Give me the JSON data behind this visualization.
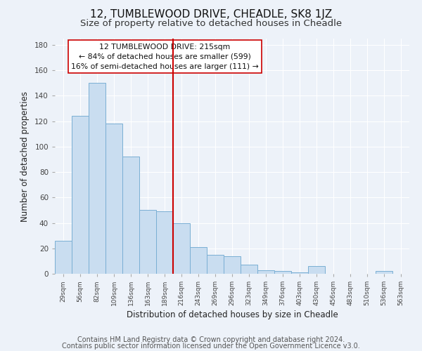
{
  "title": "12, TUMBLEWOOD DRIVE, CHEADLE, SK8 1JZ",
  "subtitle": "Size of property relative to detached houses in Cheadle",
  "xlabel": "Distribution of detached houses by size in Cheadle",
  "ylabel": "Number of detached properties",
  "bar_labels": [
    "29sqm",
    "56sqm",
    "82sqm",
    "109sqm",
    "136sqm",
    "163sqm",
    "189sqm",
    "216sqm",
    "243sqm",
    "269sqm",
    "296sqm",
    "323sqm",
    "349sqm",
    "376sqm",
    "403sqm",
    "430sqm",
    "456sqm",
    "483sqm",
    "510sqm",
    "536sqm",
    "563sqm"
  ],
  "bar_values": [
    26,
    124,
    150,
    118,
    92,
    50,
    49,
    40,
    21,
    15,
    14,
    7,
    3,
    2,
    1,
    6,
    0,
    0,
    0,
    2,
    0
  ],
  "bar_color": "#c9ddf0",
  "bar_edge_color": "#7aafd4",
  "vline_color": "#cc0000",
  "ylim": [
    0,
    185
  ],
  "yticks": [
    0,
    20,
    40,
    60,
    80,
    100,
    120,
    140,
    160,
    180
  ],
  "annotation_title": "12 TUMBLEWOOD DRIVE: 215sqm",
  "annotation_line1": "← 84% of detached houses are smaller (599)",
  "annotation_line2": "16% of semi-detached houses are larger (111) →",
  "footer1": "Contains HM Land Registry data © Crown copyright and database right 2024.",
  "footer2": "Contains public sector information licensed under the Open Government Licence v3.0.",
  "bg_color": "#edf2f9",
  "grid_color": "#ffffff",
  "title_fontsize": 11,
  "subtitle_fontsize": 9.5,
  "footer_fontsize": 7
}
